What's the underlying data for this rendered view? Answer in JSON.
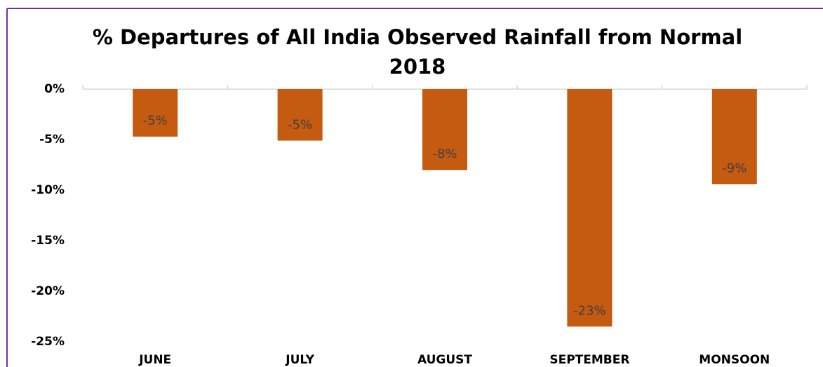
{
  "chart_data": {
    "type": "bar",
    "title": "% Departures of All India Observed Rainfall from Normal 2018",
    "categories": [
      "JUNE",
      "JULY",
      "AUGUST",
      "SEPTEMBER",
      "MONSOON"
    ],
    "values": [
      -4.7,
      -5.1,
      -8.0,
      -23.5,
      -9.4
    ],
    "value_labels": [
      "-5%",
      "-5%",
      "-8%",
      "-23%",
      "-9%"
    ],
    "color": "#c55a11",
    "ylim": [
      -25,
      0
    ],
    "yticks": [
      {
        "value": 0,
        "label": "0%"
      },
      {
        "value": -5,
        "label": "-5%"
      },
      {
        "value": -10,
        "label": "-10%"
      },
      {
        "value": -15,
        "label": "-15%"
      },
      {
        "value": -20,
        "label": "-20%"
      },
      {
        "value": -25,
        "label": "-25%"
      }
    ],
    "grid": false
  }
}
